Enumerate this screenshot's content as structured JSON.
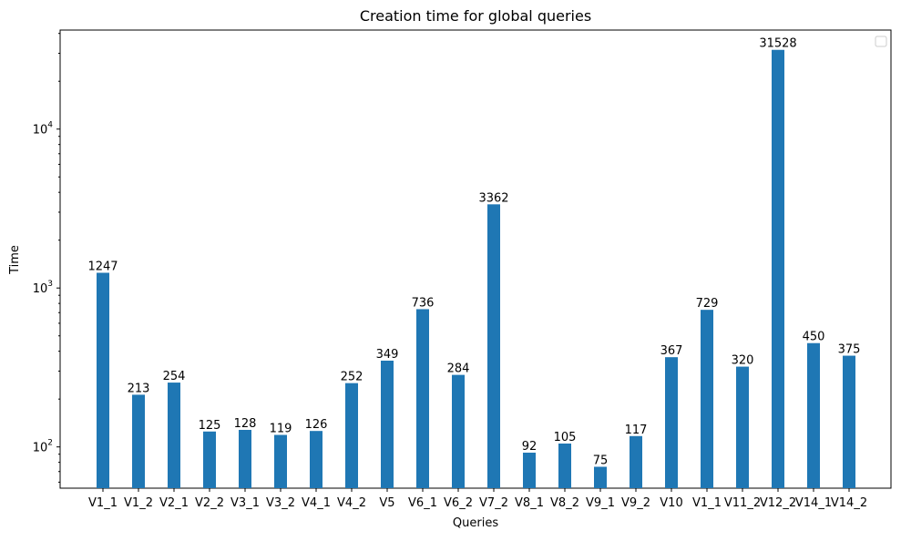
{
  "chart_data": {
    "type": "bar",
    "title": "Creation time for global queries",
    "xlabel": "Queries",
    "ylabel": "Time",
    "yscale": "log",
    "ylim": [
      55,
      42000
    ],
    "yticks": [
      {
        "value": 100,
        "base": "10",
        "exp": "2"
      },
      {
        "value": 1000,
        "base": "10",
        "exp": "3"
      },
      {
        "value": 10000,
        "base": "10",
        "exp": "4"
      }
    ],
    "categories": [
      "V1_1",
      "V1_2",
      "V2_1",
      "V2_2",
      "V3_1",
      "V3_2",
      "V4_1",
      "V4_2",
      "V5",
      "V6_1",
      "V6_2",
      "V7_2",
      "V8_1",
      "V8_2",
      "V9_1",
      "V9_2",
      "V10",
      "V1_1",
      "V11_2",
      "V12_2",
      "V14_1",
      "V14_2"
    ],
    "values": [
      1247,
      213,
      254,
      125,
      128,
      119,
      126,
      252,
      349,
      736,
      284,
      3362,
      92,
      105,
      75,
      117,
      367,
      729,
      320,
      31528,
      450,
      375
    ],
    "data_labels": [
      "1247",
      "213",
      "254",
      "125",
      "128",
      "119",
      "126",
      "252",
      "349",
      "736",
      "284",
      "3362",
      "92",
      "105",
      "75",
      "117",
      "367",
      "729",
      "320",
      "31528",
      "450",
      "375"
    ],
    "bar_color": "#1f77b4",
    "grid": false,
    "legend": {
      "placement": "top-right",
      "entries": []
    }
  }
}
